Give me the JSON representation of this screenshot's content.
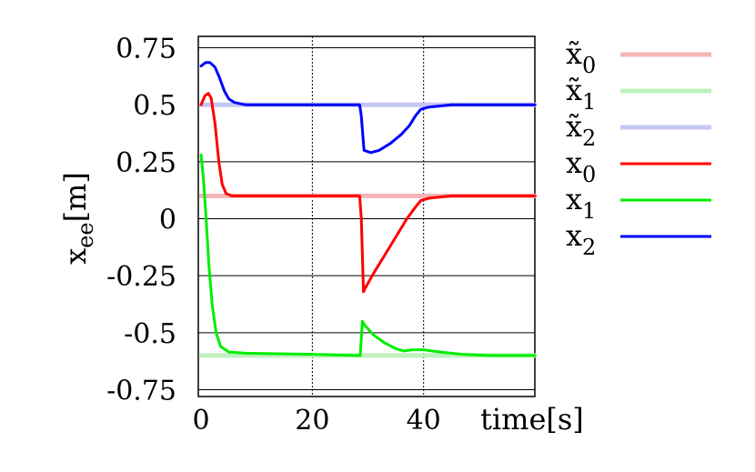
{
  "chart_data": {
    "type": "line",
    "title": "",
    "xlabel": "time[s]",
    "ylabel_main": "x",
    "ylabel_sub": "ee",
    "ylabel_unit": "[m]",
    "xlim": [
      -0.5,
      60
    ],
    "ylim": [
      -0.78,
      0.8
    ],
    "grid": true,
    "legend_position": "right",
    "x_ticks": [
      {
        "value": 0,
        "label": "0"
      },
      {
        "value": 20,
        "label": "20"
      },
      {
        "value": 40,
        "label": "40"
      }
    ],
    "y_ticks": [
      {
        "value": 0.75,
        "label": "0.75"
      },
      {
        "value": 0.5,
        "label": "0.5"
      },
      {
        "value": 0.25,
        "label": "0.25"
      },
      {
        "value": 0,
        "label": "0"
      },
      {
        "value": -0.25,
        "label": "-0.25"
      },
      {
        "value": -0.5,
        "label": "-0.5"
      },
      {
        "value": -0.75,
        "label": "-0.75"
      }
    ],
    "series": [
      {
        "name": "x̃0",
        "label_main": "x̃",
        "label_sub": "0",
        "color": "#f4b6b6",
        "width": 5,
        "points": [
          [
            0,
            0.1
          ],
          [
            28.5,
            0.1
          ],
          [
            60,
            0.1
          ]
        ]
      },
      {
        "name": "x̃1",
        "label_main": "x̃",
        "label_sub": "1",
        "color": "#bff0bf",
        "width": 5,
        "points": [
          [
            0,
            -0.6
          ],
          [
            28.5,
            -0.6
          ],
          [
            60,
            -0.6
          ]
        ]
      },
      {
        "name": "x̃2",
        "label_main": "x̃",
        "label_sub": "2",
        "color": "#c6c6f4",
        "width": 5,
        "points": [
          [
            0,
            0.5
          ],
          [
            28.5,
            0.5
          ],
          [
            60,
            0.5
          ]
        ]
      },
      {
        "name": "x0",
        "label_main": "x",
        "label_sub": "0",
        "color": "#ff0000",
        "width": 3,
        "points": [
          [
            0,
            0.5
          ],
          [
            0.7,
            0.54
          ],
          [
            1.3,
            0.55
          ],
          [
            1.8,
            0.53
          ],
          [
            2.5,
            0.42
          ],
          [
            3.2,
            0.25
          ],
          [
            3.8,
            0.15
          ],
          [
            4.5,
            0.11
          ],
          [
            5.5,
            0.1
          ],
          [
            8,
            0.1
          ],
          [
            20,
            0.1
          ],
          [
            28.5,
            0.1
          ],
          [
            28.8,
            0.0
          ],
          [
            29.2,
            -0.32
          ],
          [
            29.6,
            -0.3
          ],
          [
            31,
            -0.24
          ],
          [
            33,
            -0.16
          ],
          [
            35,
            -0.08
          ],
          [
            37,
            0.0
          ],
          [
            38.5,
            0.05
          ],
          [
            39.5,
            0.08
          ],
          [
            41,
            0.09
          ],
          [
            45,
            0.1
          ],
          [
            60,
            0.1
          ]
        ]
      },
      {
        "name": "x1",
        "label_main": "x",
        "label_sub": "1",
        "color": "#00ee00",
        "width": 3,
        "points": [
          [
            0,
            0.28
          ],
          [
            0.4,
            0.18
          ],
          [
            0.9,
            0.0
          ],
          [
            1.4,
            -0.2
          ],
          [
            2,
            -0.38
          ],
          [
            2.7,
            -0.5
          ],
          [
            3.5,
            -0.56
          ],
          [
            5,
            -0.585
          ],
          [
            8,
            -0.59
          ],
          [
            20,
            -0.595
          ],
          [
            28.2,
            -0.6
          ],
          [
            28.6,
            -0.6
          ],
          [
            29,
            -0.45
          ],
          [
            29.5,
            -0.47
          ],
          [
            31,
            -0.51
          ],
          [
            33,
            -0.545
          ],
          [
            35,
            -0.57
          ],
          [
            36.5,
            -0.58
          ],
          [
            38,
            -0.575
          ],
          [
            40,
            -0.575
          ],
          [
            43,
            -0.585
          ],
          [
            47,
            -0.595
          ],
          [
            52,
            -0.6
          ],
          [
            60,
            -0.6
          ]
        ]
      },
      {
        "name": "x2",
        "label_main": "x",
        "label_sub": "2",
        "color": "#0000ff",
        "width": 3,
        "points": [
          [
            0,
            0.67
          ],
          [
            0.8,
            0.685
          ],
          [
            1.6,
            0.685
          ],
          [
            2.5,
            0.665
          ],
          [
            3.3,
            0.62
          ],
          [
            4.2,
            0.56
          ],
          [
            5,
            0.525
          ],
          [
            6,
            0.51
          ],
          [
            8,
            0.5
          ],
          [
            20,
            0.5
          ],
          [
            28.5,
            0.5
          ],
          [
            28.8,
            0.45
          ],
          [
            29.3,
            0.3
          ],
          [
            30.5,
            0.29
          ],
          [
            32,
            0.3
          ],
          [
            34,
            0.33
          ],
          [
            36,
            0.37
          ],
          [
            37.5,
            0.41
          ],
          [
            38.5,
            0.45
          ],
          [
            39.5,
            0.48
          ],
          [
            41,
            0.49
          ],
          [
            45,
            0.5
          ],
          [
            60,
            0.5
          ]
        ]
      }
    ]
  }
}
